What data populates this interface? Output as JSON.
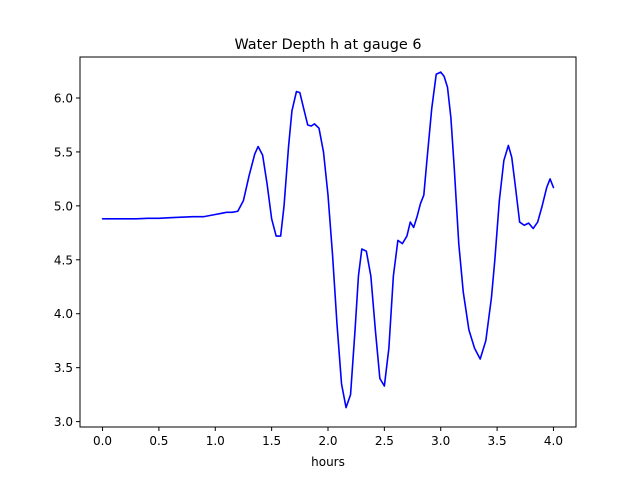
{
  "chart_data": {
    "type": "line",
    "title": "Water Depth h at gauge 6",
    "xlabel": "hours",
    "ylabel": "",
    "xlim": [
      -0.2,
      4.2
    ],
    "ylim": [
      2.95,
      6.38
    ],
    "xticks": [
      0.0,
      0.5,
      1.0,
      1.5,
      2.0,
      2.5,
      3.0,
      3.5,
      4.0
    ],
    "xtick_labels": [
      "0.0",
      "0.5",
      "1.0",
      "1.5",
      "2.0",
      "2.5",
      "3.0",
      "3.5",
      "4.0"
    ],
    "yticks": [
      3.0,
      3.5,
      4.0,
      4.5,
      5.0,
      5.5,
      6.0
    ],
    "ytick_labels": [
      "3.0",
      "3.5",
      "4.0",
      "4.5",
      "5.0",
      "5.5",
      "6.0"
    ],
    "grid": false,
    "legend": "none",
    "series": [
      {
        "color": "#0000ff",
        "x": [
          0.0,
          0.1,
          0.2,
          0.3,
          0.4,
          0.5,
          0.6,
          0.7,
          0.8,
          0.9,
          1.0,
          1.05,
          1.1,
          1.15,
          1.2,
          1.25,
          1.3,
          1.35,
          1.38,
          1.42,
          1.46,
          1.5,
          1.54,
          1.58,
          1.61,
          1.65,
          1.68,
          1.72,
          1.75,
          1.78,
          1.82,
          1.85,
          1.88,
          1.92,
          1.96,
          2.0,
          2.04,
          2.08,
          2.12,
          2.16,
          2.2,
          2.24,
          2.27,
          2.3,
          2.34,
          2.38,
          2.42,
          2.46,
          2.5,
          2.54,
          2.58,
          2.62,
          2.66,
          2.7,
          2.73,
          2.76,
          2.79,
          2.82,
          2.85,
          2.88,
          2.92,
          2.96,
          3.0,
          3.03,
          3.06,
          3.09,
          3.12,
          3.16,
          3.2,
          3.25,
          3.3,
          3.35,
          3.4,
          3.45,
          3.48,
          3.52,
          3.56,
          3.6,
          3.63,
          3.66,
          3.7,
          3.74,
          3.78,
          3.82,
          3.86,
          3.9,
          3.94,
          3.97,
          4.0
        ],
        "y": [
          4.88,
          4.88,
          4.88,
          4.88,
          4.885,
          4.885,
          4.89,
          4.895,
          4.9,
          4.9,
          4.92,
          4.93,
          4.94,
          4.94,
          4.95,
          5.05,
          5.28,
          5.48,
          5.55,
          5.47,
          5.2,
          4.88,
          4.72,
          4.72,
          5.0,
          5.55,
          5.88,
          6.06,
          6.05,
          5.92,
          5.75,
          5.74,
          5.76,
          5.72,
          5.5,
          5.1,
          4.55,
          3.9,
          3.35,
          3.13,
          3.25,
          3.85,
          4.35,
          4.6,
          4.58,
          4.35,
          3.85,
          3.4,
          3.33,
          3.68,
          4.35,
          4.68,
          4.65,
          4.72,
          4.85,
          4.8,
          4.9,
          5.02,
          5.1,
          5.45,
          5.9,
          6.22,
          6.24,
          6.2,
          6.1,
          5.82,
          5.35,
          4.65,
          4.2,
          3.85,
          3.68,
          3.58,
          3.75,
          4.15,
          4.5,
          5.05,
          5.42,
          5.56,
          5.45,
          5.2,
          4.85,
          4.82,
          4.84,
          4.79,
          4.85,
          5.0,
          5.17,
          5.25,
          5.17
        ]
      }
    ]
  }
}
